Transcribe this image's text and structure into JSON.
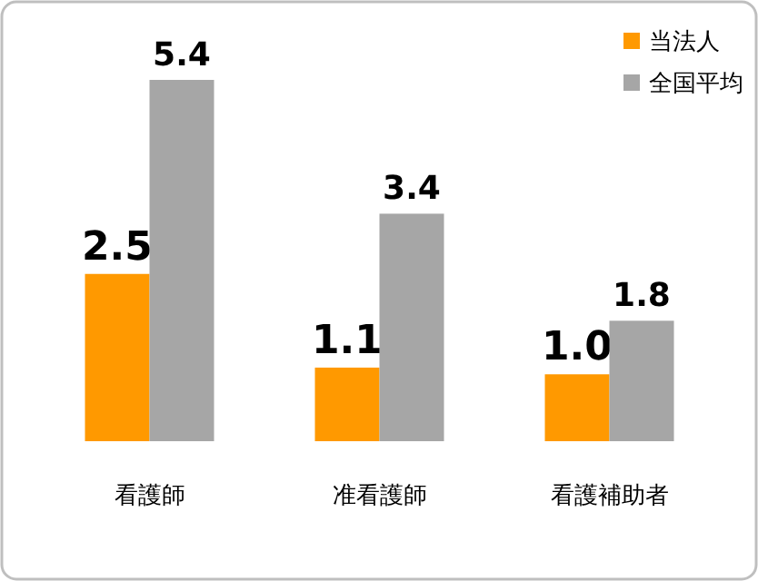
{
  "chart_data": {
    "type": "bar",
    "categories": [
      "看護師",
      "准看護師",
      "看護補助者"
    ],
    "series": [
      {
        "name": "当法人",
        "color": "#ff9900",
        "values": [
          2.5,
          1.1,
          1.0
        ],
        "value_labels": [
          "2.5",
          "1.1",
          "1.0"
        ]
      },
      {
        "name": "全国平均",
        "color": "#a6a6a6",
        "values": [
          5.4,
          3.4,
          1.8
        ],
        "value_labels": [
          "5.4",
          "3.4",
          "1.8"
        ]
      }
    ],
    "legend": "top right"
  }
}
